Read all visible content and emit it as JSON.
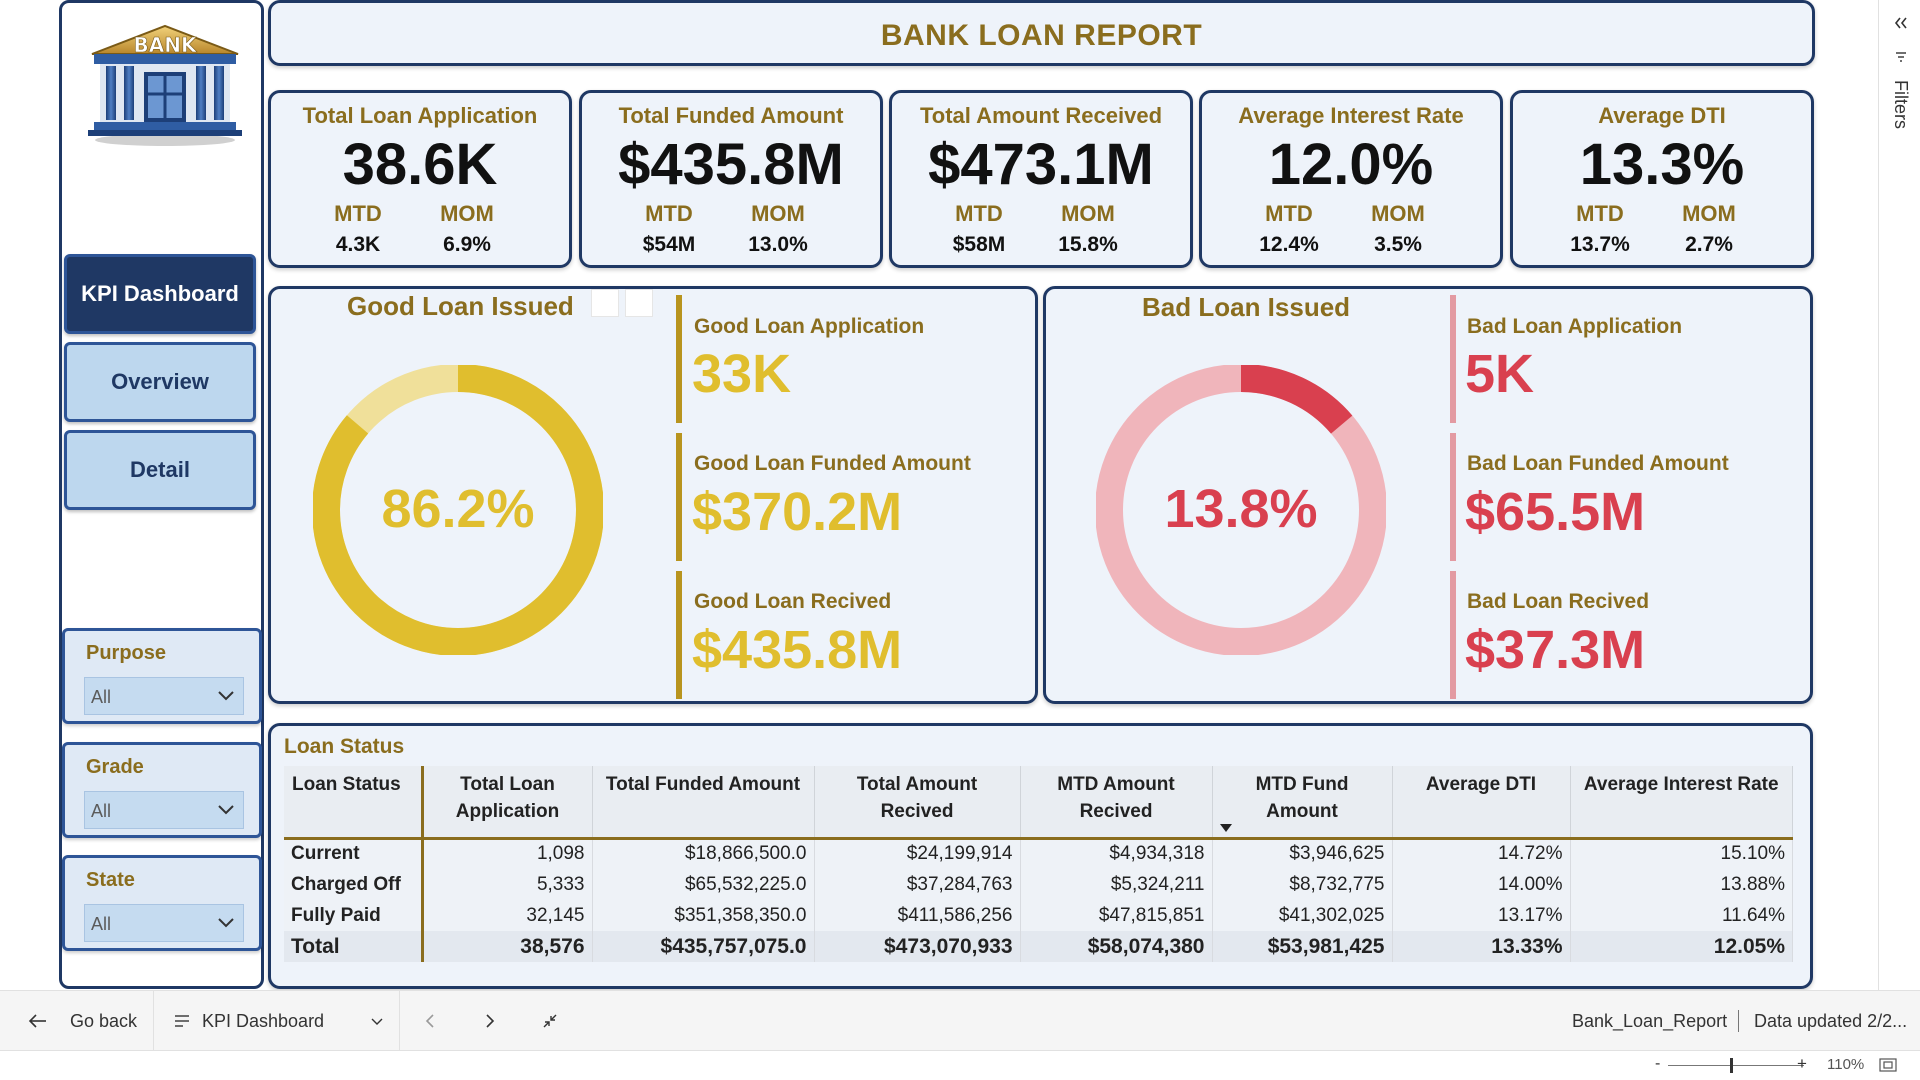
{
  "report": {
    "title": "BANK LOAN REPORT",
    "logo_text": "BANK"
  },
  "nav": {
    "kpi_dashboard": "KPI Dashboard",
    "overview": "Overview",
    "detail": "Detail"
  },
  "slicers": [
    {
      "title": "Purpose",
      "value": "All"
    },
    {
      "title": "Grade",
      "value": "All"
    },
    {
      "title": "State",
      "value": "All"
    }
  ],
  "kpis": [
    {
      "title": "Total Loan Application",
      "value": "38.6K",
      "mtd_label": "MTD",
      "mom_label": "MOM",
      "mtd": "4.3K",
      "mom": "6.9%"
    },
    {
      "title": "Total Funded Amount",
      "value": "$435.8M",
      "mtd_label": "MTD",
      "mom_label": "MOM",
      "mtd": "$54M",
      "mom": "13.0%"
    },
    {
      "title": "Total Amount Received",
      "value": "$473.1M",
      "mtd_label": "MTD",
      "mom_label": "MOM",
      "mtd": "$58M",
      "mom": "15.8%"
    },
    {
      "title": "Average Interest Rate",
      "value": "12.0%",
      "mtd_label": "MTD",
      "mom_label": "MOM",
      "mtd": "12.4%",
      "mom": "3.5%"
    },
    {
      "title": "Average DTI",
      "value": "13.3%",
      "mtd_label": "MTD",
      "mom_label": "MOM",
      "mtd": "13.7%",
      "mom": "2.7%"
    }
  ],
  "good_loan": {
    "title": "Good Loan Issued",
    "percent_label": "86.2%",
    "percent": 86.2,
    "application_label": "Good Loan Application",
    "application_value": "33K",
    "funded_label": "Good Loan Funded Amount",
    "funded_value": "$370.2M",
    "received_label": "Good Loan Recived",
    "received_value": "$435.8M",
    "color": "#e0be2e",
    "track_color": "#f0e09a"
  },
  "bad_loan": {
    "title": "Bad Loan Issued",
    "percent_label": "13.8%",
    "percent": 13.8,
    "application_label": "Bad Loan Application",
    "application_value": "5K",
    "funded_label": "Bad Loan Funded Amount",
    "funded_value": "$65.5M",
    "received_label": "Bad Loan Recived",
    "received_value": "$37.3M",
    "color": "#d9404f",
    "track_color": "#f0b5bb"
  },
  "loan_status": {
    "title": "Loan Status",
    "columns": [
      "Loan Status",
      "Total Loan Application",
      "Total Funded Amount",
      "Total Amount Recived",
      "MTD Amount Recived",
      "MTD Fund Amount",
      "Average DTI",
      "Average Interest Rate"
    ],
    "rows": [
      [
        "Current",
        "1,098",
        "$18,866,500.0",
        "$24,199,914",
        "$4,934,318",
        "$3,946,625",
        "14.72%",
        "15.10%"
      ],
      [
        "Charged Off",
        "5,333",
        "$65,532,225.0",
        "$37,284,763",
        "$5,324,211",
        "$8,732,775",
        "14.00%",
        "13.88%"
      ],
      [
        "Fully Paid",
        "32,145",
        "$351,358,350.0",
        "$411,586,256",
        "$47,815,851",
        "$41,302,025",
        "13.17%",
        "11.64%"
      ]
    ],
    "total": [
      "Total",
      "38,576",
      "$435,757,075.0",
      "$473,070,933",
      "$58,074,380",
      "$53,981,425",
      "13.33%",
      "12.05%"
    ]
  },
  "filters_rail": {
    "label": "Filters"
  },
  "bottom_bar": {
    "go_back": "Go back",
    "page_name": "KPI Dashboard",
    "report_name": "Bank_Loan_Report",
    "data_updated": "Data updated 2/2..."
  },
  "status_bar": {
    "zoom": "110%",
    "minus": "-",
    "plus": "+"
  }
}
